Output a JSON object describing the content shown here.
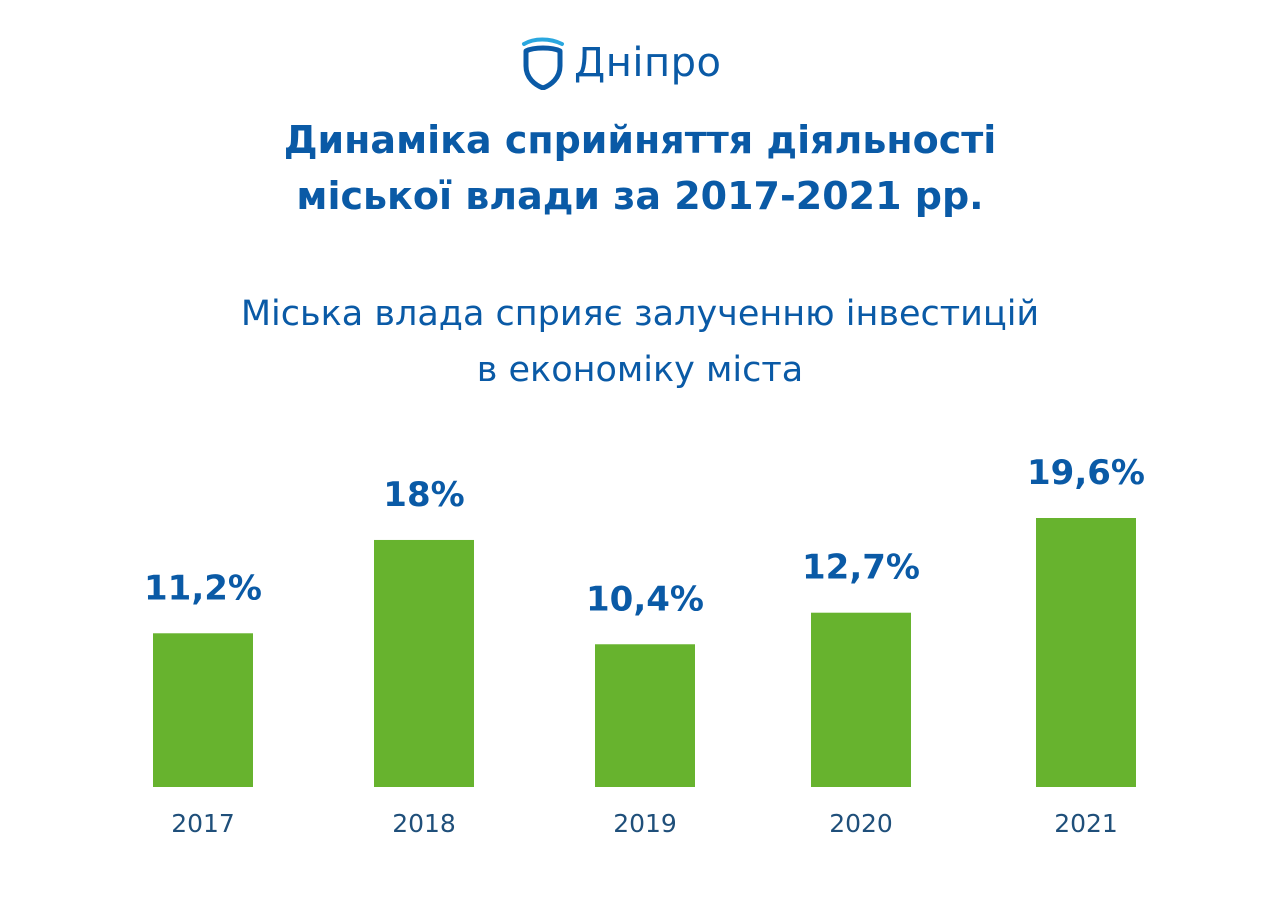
{
  "header": {
    "logo_text": "Дніпро",
    "logo_icon": "dnipro-shield-icon",
    "title_line1": "Динаміка сприйняття діяльності",
    "title_line2": "міської влади за 2017-2021 рр.",
    "subtitle_line1": "Міська влада сприяє залученню інвестицій",
    "subtitle_line2": "в економіку міста"
  },
  "colors": {
    "brand_blue": "#0a5aa6",
    "logo_wave": "#2aa7df",
    "bar_green": "#67b32e",
    "label_blue": "#0a5aa6",
    "year_text": "#1f4f7a"
  },
  "chart_data": {
    "type": "bar",
    "title": "",
    "xlabel": "",
    "ylabel": "",
    "categories": [
      "2017",
      "2018",
      "2019",
      "2020",
      "2021"
    ],
    "values": [
      11.2,
      18,
      10.4,
      12.7,
      19.6
    ],
    "value_labels": [
      "11,2%",
      "18%",
      "10,4%",
      "12,7%",
      "19,6%"
    ],
    "ylim": [
      0,
      19.6
    ],
    "grid": false,
    "legend": "none"
  }
}
